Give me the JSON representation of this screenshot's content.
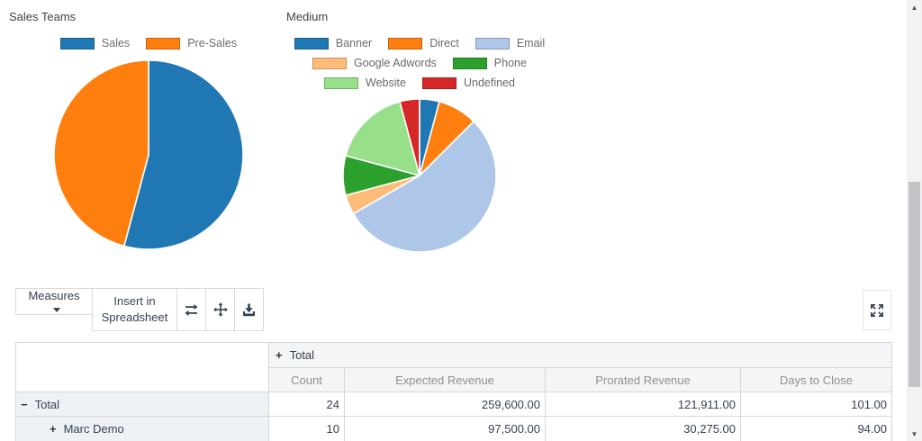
{
  "chart_data": [
    {
      "type": "pie",
      "title": "Sales Teams",
      "categories": [
        "Sales",
        "Pre-Sales"
      ],
      "values": [
        13,
        11
      ],
      "colors": [
        "#1f77b4",
        "#ff7f0e"
      ],
      "legend_position": "top"
    },
    {
      "type": "pie",
      "title": "Medium",
      "categories": [
        "Banner",
        "Direct",
        "Email",
        "Google Adwords",
        "Phone",
        "Website",
        "Undefined"
      ],
      "values": [
        1,
        2,
        13,
        1,
        2,
        4,
        1
      ],
      "colors": [
        "#1f77b4",
        "#ff7f0e",
        "#aec7e8",
        "#ffbb78",
        "#2ca02c",
        "#98df8a",
        "#d62728"
      ],
      "legend_position": "top"
    }
  ],
  "toolbar": {
    "measures_label": "Measures",
    "insert_spreadsheet_label": "Insert in Spreadsheet",
    "icon_names": [
      "flip-axis-icon",
      "expand-all-icon",
      "download-icon"
    ],
    "fullscreen_icon_name": "expand-icon",
    "icon_color": "#374151"
  },
  "icons": {
    "caret_down": "▼",
    "scroll_up": "▲",
    "scroll_down": "▼"
  },
  "pivot": {
    "column_group": {
      "toggle": "+",
      "label": "Total"
    },
    "measure_columns": [
      "Count",
      "Expected Revenue",
      "Prorated Revenue",
      "Days to Close"
    ],
    "rows": [
      {
        "toggle": "−",
        "label": "Total",
        "indent": 0,
        "values": [
          "24",
          "259,600.00",
          "121,911.00",
          "101.00"
        ]
      },
      {
        "toggle": "+",
        "label": "Marc Demo",
        "indent": 1,
        "values": [
          "10",
          "97,500.00",
          "30,275.00",
          "94.00"
        ]
      }
    ]
  }
}
